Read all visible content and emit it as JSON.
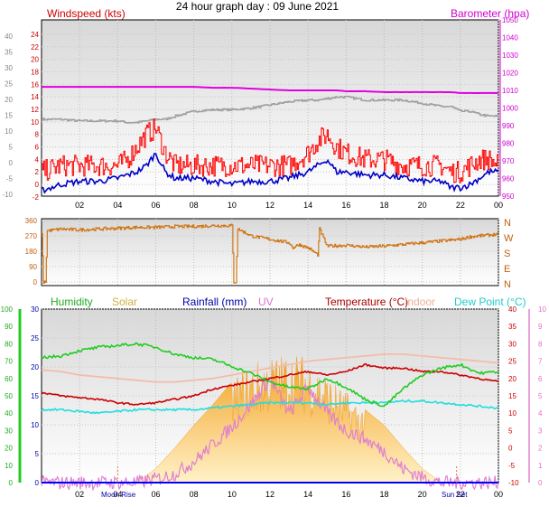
{
  "title": "24 hour graph day : 09 June 2021",
  "x_ticks": [
    "02",
    "04",
    "06",
    "08",
    "10",
    "12",
    "14",
    "16",
    "18",
    "20",
    "22",
    "00"
  ],
  "colors": {
    "panel_top": "#d8d8d8",
    "panel_bottom": "#ffffff",
    "wind_gust": "#ff0000",
    "wind_avg": "#0000c8",
    "baro": "#e000e0",
    "indoor_grey": "#a0a0a0",
    "wind_dir": "#d07818",
    "humidity": "#22cc22",
    "solar": "#f5b030",
    "rain": "#0000ff",
    "uv": "#e080d0",
    "temperature": "#cc0000",
    "indoor": "#f4bca8",
    "dewpoint": "#22dddd"
  },
  "chart_data": [
    {
      "type": "line",
      "name": "wind-baro",
      "left_axis_label": "Windspeed (kts)",
      "right_axis_label": "Barometer (hpa)",
      "left_ticks": [
        "24",
        "22",
        "20",
        "18",
        "16",
        "14",
        "12",
        "10",
        "8",
        "6",
        "4",
        "2",
        "0",
        "-2"
      ],
      "outer_left_ticks": [
        "40",
        "35",
        "30",
        "25",
        "20",
        "15",
        "10",
        "5",
        "0",
        "-5",
        "-10"
      ],
      "right_ticks": [
        "1050",
        "1040",
        "1030",
        "1020",
        "1010",
        "1000",
        "990",
        "980",
        "970",
        "960",
        "950"
      ],
      "x_hours": [
        0,
        1,
        2,
        3,
        4,
        4.5,
        5,
        5.5,
        6,
        6.5,
        7,
        8,
        9,
        10,
        11,
        12,
        13,
        14,
        14.5,
        15,
        15.5,
        16,
        17,
        18,
        19,
        20,
        21,
        21.5,
        22,
        22.5,
        23,
        23.5,
        24
      ],
      "gust_kts": [
        2,
        3,
        3,
        3,
        3,
        4,
        6,
        8,
        9,
        5,
        3,
        3,
        3,
        3,
        3,
        3,
        3,
        5,
        7,
        8,
        6,
        5,
        4,
        4,
        3,
        3,
        3,
        2,
        2,
        3,
        4,
        4,
        3
      ],
      "avg_kts": [
        -1,
        0,
        0.5,
        0.5,
        1,
        1.5,
        2,
        3,
        5,
        2,
        1,
        1,
        0.5,
        0,
        0.5,
        0.5,
        1,
        2,
        3,
        4,
        2,
        2,
        1.5,
        1.5,
        1,
        0.5,
        0.5,
        -0.5,
        -0.5,
        0,
        1,
        2,
        2
      ],
      "baro_hpa": [
        1012,
        1012,
        1012,
        1012,
        1012,
        1012,
        1012,
        1012,
        1012,
        1012,
        1012,
        1012,
        1011.5,
        1011.5,
        1011,
        1010.5,
        1010,
        1010,
        1010,
        1010,
        1010,
        1009.5,
        1009.5,
        1009,
        1009,
        1009,
        1009,
        1009,
        1008.5,
        1008.5,
        1008.5,
        1008.5,
        1008.5
      ],
      "grey_series": [
        14,
        14,
        13.5,
        13.5,
        13.5,
        13,
        13,
        13.5,
        14,
        14,
        15,
        16.5,
        17,
        17,
        17.5,
        18.5,
        19.5,
        20,
        20,
        20.5,
        21,
        21,
        20,
        20,
        20,
        19,
        18,
        18,
        16.5,
        16.5,
        15.5,
        15,
        15
      ]
    },
    {
      "type": "line",
      "name": "wind-direction",
      "left_ticks": [
        "360",
        "270",
        "180",
        "90",
        "0"
      ],
      "right_ticks": [
        "N",
        "W",
        "S",
        "E",
        "N"
      ],
      "x_hours": [
        0,
        0.1,
        0.2,
        0.3,
        1,
        2,
        3,
        4,
        5,
        6,
        7,
        8,
        9,
        9.5,
        10,
        10.1,
        10.2,
        10.3,
        10.5,
        11,
        12,
        13,
        13.2,
        13.5,
        14,
        14.5,
        14.6,
        15,
        16,
        17,
        18,
        19,
        20,
        21,
        22,
        22.5,
        23,
        24
      ],
      "direction_deg": [
        290,
        0,
        0,
        300,
        310,
        305,
        310,
        315,
        320,
        320,
        325,
        325,
        330,
        330,
        330,
        0,
        0,
        310,
        300,
        270,
        250,
        230,
        200,
        220,
        200,
        160,
        310,
        210,
        215,
        205,
        210,
        220,
        230,
        240,
        250,
        265,
        270,
        280
      ]
    },
    {
      "type": "line",
      "name": "humidity-solar-temp",
      "legend": [
        "Humidity",
        "Solar",
        "Rainfall (mm)",
        "UV",
        "Temperature (°C)",
        "Indoor",
        "Dew Point (°C)"
      ],
      "left_ticks_humidity": [
        "100",
        "90",
        "80",
        "70",
        "60",
        "50",
        "40",
        "30",
        "20",
        "10",
        "0"
      ],
      "left_ticks_rain": [
        "30",
        "25",
        "20",
        "15",
        "10",
        "5",
        "0"
      ],
      "right_ticks_temp": [
        "40",
        "35",
        "30",
        "25",
        "20",
        "15",
        "10",
        "5",
        "0",
        "-5",
        "-10"
      ],
      "right_ticks_uv": [
        "10",
        "9",
        "8",
        "7",
        "6",
        "5",
        "4",
        "3",
        "2",
        "1",
        "0"
      ],
      "bottom_labels": [
        "Moon Rise",
        "Sun Set"
      ],
      "x_hours": [
        0,
        1,
        2,
        3,
        4,
        5,
        6,
        7,
        8,
        9,
        10,
        11,
        12,
        13,
        14,
        15,
        16,
        17,
        18,
        19,
        20,
        21,
        22,
        23,
        24
      ],
      "humidity_pct": [
        72,
        73,
        76,
        78,
        79,
        80,
        78,
        74,
        72,
        71,
        67,
        63,
        58,
        55,
        54,
        60,
        55,
        48,
        44,
        54,
        62,
        66,
        68,
        63,
        64
      ],
      "temperature_c": [
        16,
        15,
        14.5,
        14,
        13,
        12.5,
        13,
        14,
        15,
        17,
        18,
        19,
        20,
        21,
        22,
        21,
        22,
        24,
        23,
        23,
        22,
        22,
        21,
        20,
        19
      ],
      "indoor_c": [
        22.5,
        22,
        21,
        20.5,
        20,
        19.5,
        19,
        19,
        19.5,
        20,
        21,
        22,
        23,
        24,
        25,
        25.5,
        26,
        26.5,
        27,
        27,
        26.5,
        26,
        25.5,
        25,
        24.5
      ],
      "dewpoint_c": [
        11,
        11,
        10.5,
        10,
        10.5,
        11,
        11,
        11,
        11,
        11.5,
        12,
        12.5,
        13,
        13,
        13,
        12.5,
        13,
        13,
        13,
        13.5,
        13.5,
        13,
        12.5,
        12,
        11.5
      ],
      "solar_frac": [
        0,
        0,
        0,
        0,
        0,
        0,
        0.08,
        0.2,
        0.33,
        0.45,
        0.58,
        0.66,
        0.7,
        0.72,
        0.7,
        0.6,
        0.5,
        0.42,
        0.33,
        0.2,
        0.08,
        0,
        0,
        0,
        0
      ],
      "uv_index": [
        0,
        0,
        0,
        0,
        0,
        0,
        0.2,
        0.5,
        1.2,
        2.2,
        3.2,
        4.5,
        6.0,
        4.0,
        5.5,
        4.0,
        3.0,
        2.5,
        1.8,
        0.8,
        0.3,
        0,
        0,
        0,
        0
      ],
      "rain_mm": [
        0,
        0,
        0,
        0,
        0,
        0,
        0,
        0,
        0,
        0,
        0,
        0,
        0,
        0,
        0,
        0,
        0,
        0,
        0,
        0,
        0,
        0,
        0,
        0,
        0
      ]
    }
  ]
}
